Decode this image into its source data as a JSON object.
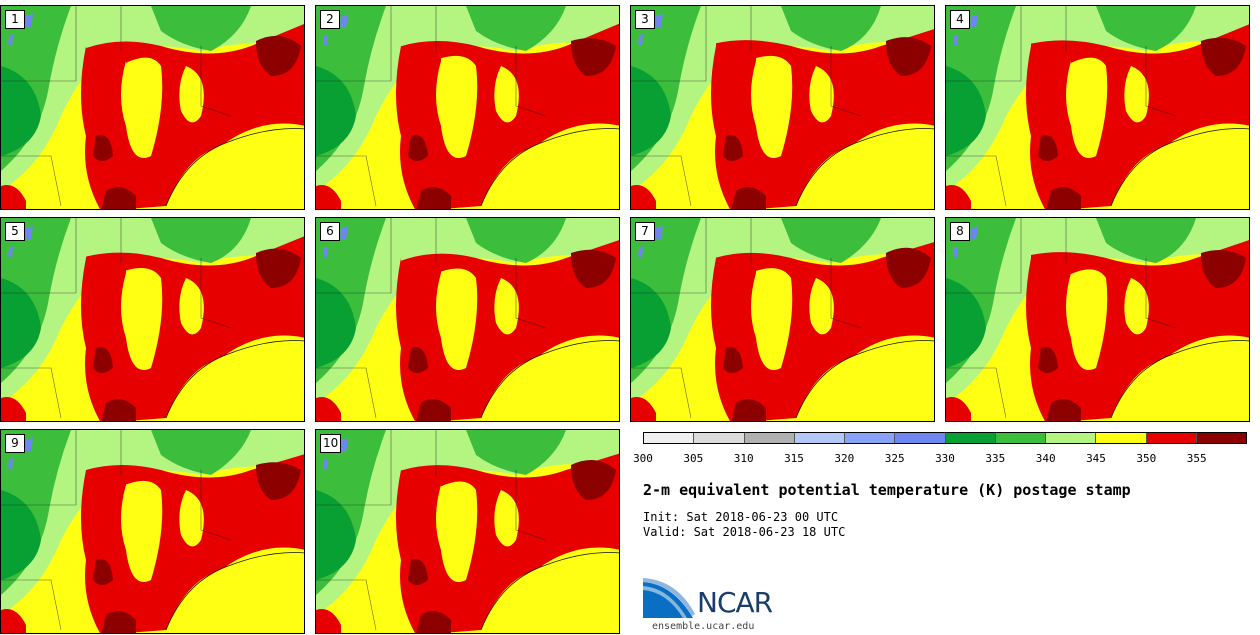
{
  "chart_data": {
    "type": "heatmap",
    "title": "2-m equivalent potential temperature (K) postage stamp",
    "init": "Init: Sat 2018-06-23 00 UTC",
    "valid": "Valid: Sat 2018-06-23 18 UTC",
    "members": [
      "1",
      "2",
      "3",
      "4",
      "5",
      "6",
      "7",
      "8",
      "9",
      "10"
    ],
    "colorbar": {
      "levels": [
        300,
        305,
        310,
        315,
        320,
        325,
        330,
        335,
        340,
        345,
        350,
        355,
        360
      ],
      "tick_labels": [
        "300",
        "305",
        "310",
        "315",
        "320",
        "325",
        "330",
        "335",
        "340",
        "345",
        "350",
        "355"
      ],
      "colors": [
        "#f0f0f0",
        "#dcdcdc",
        "#b0b0b0",
        "#b4c8f8",
        "#8aa2f5",
        "#6f86f0",
        "#08a032",
        "#3cbe3c",
        "#b4f582",
        "#ffff14",
        "#e60000",
        "#8c0000"
      ]
    }
  },
  "footer": {
    "logo_text": "NCAR",
    "url": "ensemble.ucar.edu"
  }
}
